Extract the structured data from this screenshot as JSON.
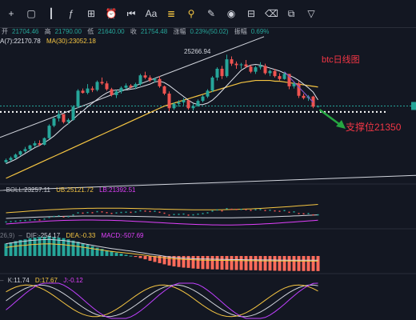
{
  "toolbar": {
    "icons": [
      "plus-icon",
      "rectangle-icon",
      "candles-icon",
      "indicators-icon",
      "templates-icon",
      "alert-icon",
      "replay-icon",
      "text-icon",
      "fib-icon",
      "pattern-icon",
      "ruler-icon",
      "eye-icon",
      "lock-icon",
      "trash-icon",
      "object-tree-icon",
      "filter-icon"
    ],
    "text_tool_label": "Aa"
  },
  "ohlc": {
    "o_label": "开",
    "o": "21704.46",
    "h_label": "高",
    "h": "21790.00",
    "l_label": "低",
    "l": "21640.00",
    "c_label": "收",
    "c": "21754.48",
    "chg_label": "涨幅",
    "chg": "0.23%(50.02)",
    "amp_label": "振幅",
    "amp": "0.69%"
  },
  "ma": {
    "ma7_label": "A(7):",
    "ma7": "22170.78",
    "ma30_label": "MA(30):",
    "ma30": "23052.18"
  },
  "boll": {
    "label": "BOLL:",
    "mid": "23257.11",
    "ub_label": "UB:",
    "ub": "25121.72",
    "lb_label": "LB:",
    "lb": "21392.51"
  },
  "macd": {
    "params": "26,9)",
    "dif_label": "DIF:",
    "dif": "-254.17",
    "dea_label": "DEA:",
    "dea": "-0.33",
    "macd_label": "MACD:",
    "macd": "-507.69"
  },
  "kdj": {
    "k_label": "K:",
    "k": "11.74",
    "d_label": "D:",
    "d": "17.67",
    "j_label": "J:",
    "j": "-0.12"
  },
  "annotations": {
    "title": "btc日线图",
    "support": "支撑位21350",
    "high_label": "25266.94"
  },
  "colors": {
    "up": "#26a69a",
    "down": "#ef5350",
    "ma7": "#e0e3eb",
    "ma30": "#f5c542",
    "accent_red": "#f23645",
    "arrow": "#26a641",
    "macd_down": "#ff6b5b",
    "boll_lb": "#e040fb",
    "j_line": "#c040ff"
  },
  "chart_data": [
    {
      "type": "candlestick",
      "title": "btc日线图",
      "ohlc": [
        [
          17900,
          18150,
          17850,
          18050
        ],
        [
          18050,
          18300,
          17950,
          18200
        ],
        [
          18200,
          18500,
          18100,
          18420
        ],
        [
          18420,
          18700,
          18350,
          18650
        ],
        [
          18650,
          18950,
          18550,
          18800
        ],
        [
          18800,
          19100,
          18700,
          19050
        ],
        [
          19050,
          19350,
          18950,
          19200
        ],
        [
          19200,
          19400,
          19000,
          19100
        ],
        [
          19100,
          19600,
          19050,
          19550
        ],
        [
          19550,
          20500,
          19500,
          20400
        ],
        [
          20400,
          21000,
          20300,
          20900
        ],
        [
          20900,
          21450,
          20700,
          21200
        ],
        [
          21200,
          21100,
          20550,
          20650
        ],
        [
          20650,
          20900,
          20500,
          20800
        ],
        [
          20800,
          21800,
          20750,
          21700
        ],
        [
          21700,
          22900,
          21600,
          22800
        ],
        [
          22800,
          22950,
          22600,
          22650
        ],
        [
          22650,
          23250,
          22550,
          22950
        ],
        [
          22950,
          23100,
          22700,
          22850
        ],
        [
          22850,
          23500,
          22750,
          23400
        ],
        [
          23400,
          23700,
          23200,
          23300
        ],
        [
          23300,
          23450,
          22800,
          22900
        ],
        [
          22900,
          23000,
          22400,
          22500
        ],
        [
          22500,
          22850,
          22300,
          22750
        ],
        [
          22750,
          23100,
          22600,
          23000
        ],
        [
          23000,
          23300,
          22850,
          23150
        ],
        [
          23150,
          23250,
          22950,
          23050
        ],
        [
          23050,
          23350,
          22900,
          23250
        ],
        [
          23250,
          23950,
          23150,
          23850
        ],
        [
          23850,
          24100,
          23600,
          23700
        ],
        [
          23700,
          23850,
          23400,
          23500
        ],
        [
          23500,
          23700,
          23350,
          23600
        ],
        [
          23600,
          23800,
          23000,
          23100
        ],
        [
          23100,
          23150,
          22500,
          22600
        ],
        [
          22600,
          22750,
          21400,
          21600
        ],
        [
          21600,
          22000,
          21500,
          21900
        ],
        [
          21900,
          22150,
          21700,
          22000
        ],
        [
          22000,
          22300,
          21800,
          22150
        ],
        [
          22150,
          22100,
          21500,
          21600
        ],
        [
          21600,
          21900,
          21450,
          21750
        ],
        [
          21750,
          22200,
          21700,
          22100
        ],
        [
          22100,
          22500,
          22000,
          22400
        ],
        [
          22400,
          22900,
          22300,
          22800
        ],
        [
          22800,
          23800,
          22700,
          23700
        ],
        [
          23700,
          24400,
          23500,
          24300
        ],
        [
          24300,
          24500,
          23600,
          23800
        ],
        [
          23800,
          25266.94,
          23700,
          24950
        ],
        [
          24950,
          25150,
          24500,
          24650
        ],
        [
          24650,
          24800,
          24300,
          24550
        ],
        [
          24550,
          24700,
          24300,
          24600
        ],
        [
          24600,
          24900,
          24350,
          24450
        ],
        [
          24450,
          24550,
          24000,
          24100
        ],
        [
          24100,
          24500,
          23950,
          24400
        ],
        [
          24400,
          24750,
          24250,
          24500
        ],
        [
          24500,
          24650,
          23900,
          24000
        ],
        [
          24000,
          24250,
          23800,
          24150
        ],
        [
          24150,
          24300,
          23700,
          23800
        ],
        [
          23800,
          24000,
          23500,
          23600
        ],
        [
          23600,
          24050,
          23550,
          23950
        ],
        [
          23950,
          23900,
          22900,
          23100
        ],
        [
          23100,
          23400,
          22950,
          23300
        ],
        [
          23300,
          23450,
          22300,
          22450
        ],
        [
          22450,
          22600,
          22200,
          22300
        ],
        [
          22300,
          22500,
          22100,
          22400
        ],
        [
          22400,
          22450,
          21600,
          21704.46
        ],
        [
          21704.46,
          21790,
          21640,
          21754.48
        ]
      ],
      "ma7": [
        17800,
        17950,
        18100,
        18300,
        18500,
        18700,
        18900,
        19050,
        19250,
        19450,
        19700,
        20000,
        20300,
        20550,
        20850,
        21150,
        21400,
        21700,
        21950,
        22200,
        22450,
        22650,
        22800,
        22850,
        22850,
        22850,
        22900,
        22950,
        23050,
        23150,
        23250,
        23400,
        23450,
        23350,
        23150,
        22900,
        22650,
        22400,
        22150,
        21950,
        21850,
        21850,
        21950,
        22150,
        22450,
        22800,
        23150,
        23500,
        23850,
        24200,
        24400,
        24550,
        24600,
        24550,
        24450,
        24350,
        24250,
        24150,
        24000,
        23850,
        23700,
        23500,
        23250,
        23000,
        22700,
        22170.78
      ],
      "ma30": [
        16800,
        16950,
        17100,
        17250,
        17400,
        17550,
        17700,
        17850,
        18000,
        18150,
        18300,
        18450,
        18600,
        18750,
        18900,
        19050,
        19200,
        19350,
        19500,
        19650,
        19800,
        19950,
        20100,
        20250,
        20400,
        20550,
        20700,
        20850,
        21000,
        21150,
        21300,
        21450,
        21600,
        21750,
        21850,
        21950,
        22050,
        22150,
        22250,
        22350,
        22450,
        22550,
        22650,
        22750,
        22850,
        22950,
        23050,
        23150,
        23250,
        23350,
        23400,
        23450,
        23500,
        23500,
        23500,
        23500,
        23450,
        23450,
        23400,
        23350,
        23300,
        23250,
        23200,
        23150,
        23100,
        23052.18
      ],
      "support_level": 21350,
      "ylim": [
        16300,
        26600
      ]
    },
    {
      "type": "line",
      "title": "BOLL",
      "series": [
        {
          "name": "UB",
          "last": 25121.72
        },
        {
          "name": "BOLL",
          "last": 23257.11
        },
        {
          "name": "LB",
          "last": 21392.51
        }
      ]
    },
    {
      "type": "bar",
      "title": "MACD",
      "values": [
        420,
        460,
        500,
        540,
        560,
        600,
        620,
        640,
        650,
        660,
        640,
        620,
        600,
        560,
        520,
        480,
        430,
        380,
        330,
        280,
        240,
        190,
        150,
        110,
        80,
        40,
        10,
        -30,
        -70,
        -110,
        -160,
        -200,
        -240,
        -280,
        -320,
        -350,
        -370,
        -390,
        -400,
        -420,
        -430,
        -440,
        -440,
        -450,
        -450,
        -460,
        -460,
        -470,
        -470,
        -470,
        -480,
        -480,
        -480,
        -490,
        -490,
        -490,
        -495,
        -500,
        -500,
        -502,
        -503,
        -505,
        -505,
        -506,
        -507,
        -507.69
      ],
      "series": [
        {
          "name": "DIF",
          "last": -254.17
        },
        {
          "name": "DEA",
          "last": -0.33
        }
      ]
    },
    {
      "type": "line",
      "title": "KDJ",
      "series": [
        {
          "name": "K",
          "last": 11.74
        },
        {
          "name": "D",
          "last": 17.67
        },
        {
          "name": "J",
          "last": -0.12
        }
      ]
    }
  ]
}
